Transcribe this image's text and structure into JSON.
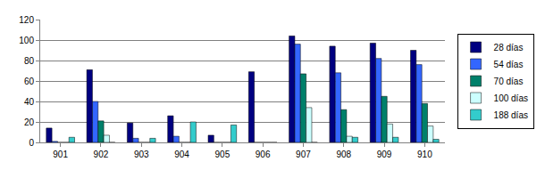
{
  "chart_data": {
    "type": "bar",
    "categories": [
      "901",
      "902",
      "903",
      "904",
      "905",
      "906",
      "907",
      "908",
      "909",
      "910"
    ],
    "series": [
      {
        "name": "28 días",
        "color": "#000080",
        "values": [
          14,
          71,
          19,
          26,
          7,
          69,
          104,
          94,
          97,
          90
        ]
      },
      {
        "name": "54 días",
        "color": "#3366ff",
        "values": [
          1,
          40,
          4,
          6,
          0,
          0,
          96,
          68,
          82,
          76
        ]
      },
      {
        "name": "70 días",
        "color": "#00806a",
        "values": [
          0,
          21,
          0,
          0,
          0,
          0,
          67,
          32,
          45,
          38
        ]
      },
      {
        "name": "100 días",
        "color": "#ccffff",
        "values": [
          0,
          7,
          0,
          0,
          0,
          0,
          34,
          6,
          18,
          16
        ]
      },
      {
        "name": "188 días",
        "color": "#33cccc",
        "values": [
          5,
          0,
          4,
          20,
          17,
          0,
          0,
          5,
          5,
          3
        ]
      }
    ],
    "ylim": [
      0,
      120
    ],
    "yticks": [
      0,
      20,
      40,
      60,
      80,
      100,
      120
    ],
    "grid": true,
    "legend": "right"
  }
}
